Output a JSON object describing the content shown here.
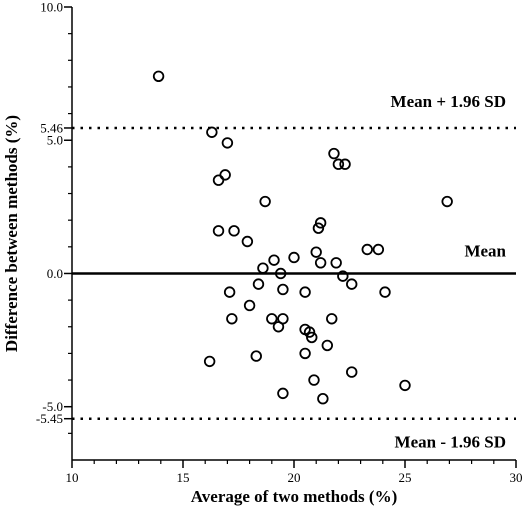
{
  "chart_data": {
    "type": "scatter",
    "title": "",
    "xlabel": "Average of two methods (%)",
    "ylabel": "Difference between methods (%)",
    "xlim": [
      10,
      30
    ],
    "ylim": [
      -7,
      10
    ],
    "x_ticks": [
      10,
      15,
      20,
      25,
      30
    ],
    "x_tick_labels": [
      "10",
      "15",
      "20",
      "25",
      "30"
    ],
    "y_ticks": [
      10,
      5,
      0,
      -5
    ],
    "y_tick_labels": [
      "10.0",
      "5.0",
      "0.0",
      "-5.0"
    ],
    "y_extra_ticks": [
      5.46,
      -5.45
    ],
    "y_extra_tick_labels": [
      "5.46",
      "-5.45"
    ],
    "grid": false,
    "reference_lines": [
      {
        "y": 0,
        "style": "solid",
        "label": "Mean"
      },
      {
        "y": 5.46,
        "style": "dotted",
        "label": "Mean + 1.96 SD"
      },
      {
        "y": -5.45,
        "style": "dotted",
        "label": "Mean - 1.96 SD"
      }
    ],
    "points": [
      {
        "x": 13.9,
        "y": 7.4
      },
      {
        "x": 16.3,
        "y": 5.3
      },
      {
        "x": 17.0,
        "y": 4.9
      },
      {
        "x": 21.8,
        "y": 4.5
      },
      {
        "x": 22.0,
        "y": 4.1
      },
      {
        "x": 22.3,
        "y": 4.1
      },
      {
        "x": 16.9,
        "y": 3.7
      },
      {
        "x": 16.6,
        "y": 3.5
      },
      {
        "x": 18.7,
        "y": 2.7
      },
      {
        "x": 26.9,
        "y": 2.7
      },
      {
        "x": 21.2,
        "y": 1.9
      },
      {
        "x": 21.1,
        "y": 1.7
      },
      {
        "x": 16.6,
        "y": 1.6
      },
      {
        "x": 17.3,
        "y": 1.6
      },
      {
        "x": 17.9,
        "y": 1.2
      },
      {
        "x": 23.3,
        "y": 0.9
      },
      {
        "x": 23.8,
        "y": 0.9
      },
      {
        "x": 21.0,
        "y": 0.8
      },
      {
        "x": 20.0,
        "y": 0.6
      },
      {
        "x": 19.1,
        "y": 0.5
      },
      {
        "x": 21.9,
        "y": 0.4
      },
      {
        "x": 21.2,
        "y": 0.4
      },
      {
        "x": 18.6,
        "y": 0.2
      },
      {
        "x": 19.4,
        "y": 0.0
      },
      {
        "x": 22.2,
        "y": -0.1
      },
      {
        "x": 18.4,
        "y": -0.4
      },
      {
        "x": 22.6,
        "y": -0.4
      },
      {
        "x": 17.1,
        "y": -0.7
      },
      {
        "x": 19.5,
        "y": -0.6
      },
      {
        "x": 20.5,
        "y": -0.7
      },
      {
        "x": 24.1,
        "y": -0.7
      },
      {
        "x": 18.0,
        "y": -1.2
      },
      {
        "x": 17.2,
        "y": -1.7
      },
      {
        "x": 19.0,
        "y": -1.7
      },
      {
        "x": 19.5,
        "y": -1.7
      },
      {
        "x": 21.7,
        "y": -1.7
      },
      {
        "x": 19.3,
        "y": -2.0
      },
      {
        "x": 20.5,
        "y": -2.1
      },
      {
        "x": 20.7,
        "y": -2.2
      },
      {
        "x": 20.8,
        "y": -2.4
      },
      {
        "x": 21.5,
        "y": -2.7
      },
      {
        "x": 20.5,
        "y": -3.0
      },
      {
        "x": 18.3,
        "y": -3.1
      },
      {
        "x": 16.2,
        "y": -3.3
      },
      {
        "x": 22.6,
        "y": -3.7
      },
      {
        "x": 20.9,
        "y": -4.0
      },
      {
        "x": 25.0,
        "y": -4.2
      },
      {
        "x": 19.5,
        "y": -4.5
      },
      {
        "x": 21.3,
        "y": -4.7
      }
    ]
  }
}
